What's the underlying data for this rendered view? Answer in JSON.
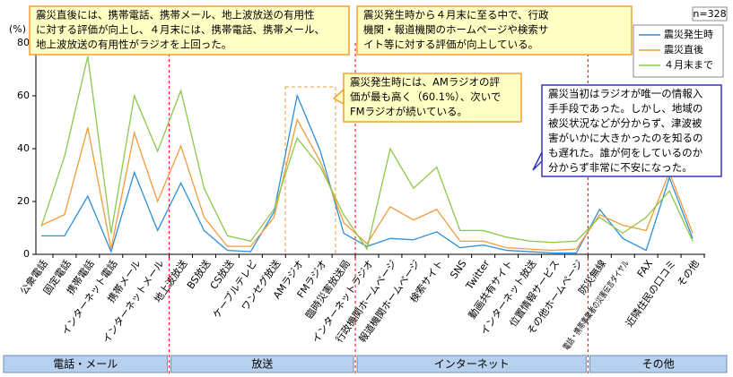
{
  "chart_data": {
    "type": "line",
    "y_label": "(%)",
    "n_label": "n=328",
    "categories": [
      "公衆電話",
      "固定電話",
      "携帯電話",
      "インターネット電話",
      "携帯メール",
      "インターネットメール",
      "地上波放送",
      "BS放送",
      "CS放送",
      "ケーブルテレビ",
      "ワンセグ放送",
      "AMラジオ",
      "FMラジオ",
      "臨時災害放送局",
      "インターネットラジオ",
      "行政機関ホームページ",
      "報道機関ホームページ",
      "検索サイト",
      "SNS",
      "Twitter",
      "動画共有サイト",
      "インターネット放送",
      "位置情報サービス",
      "その他ホームページ",
      "防災無線",
      "電話・携帯事業者の災害伝言ダイヤル",
      "FAX",
      "近隣住民の口コミ",
      "その他"
    ],
    "series": [
      {
        "name": "震災発生時",
        "color": "#2e8fdb",
        "values": [
          7,
          7,
          22,
          1,
          31,
          9,
          27,
          9,
          1.5,
          1,
          16,
          60.1,
          39,
          8,
          3,
          6,
          5.5,
          8.5,
          2.5,
          3.5,
          1.5,
          1,
          0.5,
          0.5,
          17,
          6,
          1.5,
          29,
          6
        ]
      },
      {
        "name": "震災直後",
        "color": "#f39a3c",
        "values": [
          11,
          15,
          48,
          2,
          46,
          20,
          41,
          14,
          3,
          3,
          14,
          51,
          35,
          12,
          4,
          18,
          13,
          17,
          5,
          5,
          2.5,
          2,
          1.5,
          2,
          15,
          11,
          9,
          31,
          8
        ]
      },
      {
        "name": "４月末まで",
        "color": "#8cc84b",
        "values": [
          10.5,
          37,
          75,
          8,
          60,
          39,
          62,
          25,
          7,
          5,
          17,
          44,
          33,
          15,
          2,
          40,
          25,
          33,
          9,
          9,
          6.5,
          5,
          4.5,
          5,
          14,
          8,
          14,
          24,
          5
        ]
      }
    ],
    "ylim": [
      0,
      80
    ],
    "yticks": [
      0,
      20,
      40,
      60,
      80
    ],
    "groups": [
      "電話・メール",
      "放送",
      "インターネット",
      "その他"
    ],
    "annotations": [
      [
        "震災直後には、携帯電話、携帯メール、地上波放送の有用性",
        "に対する評価が向上し、４月末には、携帯電話、携帯メール、",
        "地上波放送の有用性がラジオを上回った。"
      ],
      [
        "震災発生時から４月末に至る中で、行政",
        "機関・報道機関のホームページや検索サ",
        "イト等に対する評価が向上している。"
      ],
      [
        "震災発生時には、AMラジオの評",
        "価が最も高く（60.1%）、次いで",
        "FMラジオが続いている。"
      ],
      [
        "震災当初はラジオが唯一の情報入",
        "手手段であった。しかし、地域の",
        "被災状況などが分からず、津波被",
        "害がいかに大きかったのを知るの",
        "も遅れた。誰が何をしているのか",
        "分からず非常に不安になった。"
      ]
    ]
  }
}
